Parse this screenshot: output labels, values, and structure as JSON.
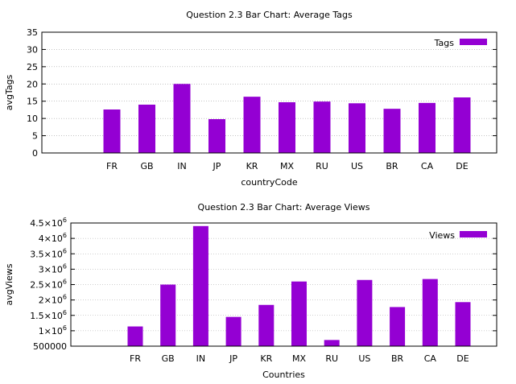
{
  "chart_data": [
    {
      "type": "bar",
      "title": "Question 2.3 Bar Chart: Average Tags",
      "xlabel": "countryCode",
      "ylabel": "avgTags",
      "ylim": [
        0,
        35
      ],
      "yticks": [
        "0",
        "5",
        "10",
        "15",
        "20",
        "25",
        "30",
        "35"
      ],
      "categories": [
        "FR",
        "GB",
        "IN",
        "JP",
        "KR",
        "MX",
        "RU",
        "US",
        "BR",
        "CA",
        "DE"
      ],
      "series": [
        {
          "name": "Tags",
          "values": [
            12.6,
            14.0,
            20.0,
            9.8,
            16.3,
            14.7,
            14.9,
            14.4,
            12.8,
            14.5,
            16.1
          ]
        }
      ],
      "legend_position": "top-right",
      "grid": true,
      "colors": {
        "bar": "#9400D3"
      }
    },
    {
      "type": "bar",
      "title": "Question 2.3 Bar Chart: Average Views",
      "xlabel": "Countries",
      "ylabel": "avgViews",
      "ylim": [
        500000,
        4500000
      ],
      "yticks": [
        "500000",
        "1×10^6",
        "1.5×10^6",
        "2×10^6",
        "2.5×10^6",
        "3×10^6",
        "3.5×10^6",
        "4×10^6",
        "4.5×10^6"
      ],
      "categories": [
        "FR",
        "GB",
        "IN",
        "JP",
        "KR",
        "MX",
        "RU",
        "US",
        "BR",
        "CA",
        "DE"
      ],
      "series": [
        {
          "name": "Views",
          "values": [
            1140000,
            2500000,
            4400000,
            1450000,
            1840000,
            2600000,
            700000,
            2650000,
            1770000,
            2680000,
            1930000
          ]
        }
      ],
      "legend_position": "top-right",
      "grid": true,
      "colors": {
        "bar": "#9400D3"
      }
    }
  ]
}
